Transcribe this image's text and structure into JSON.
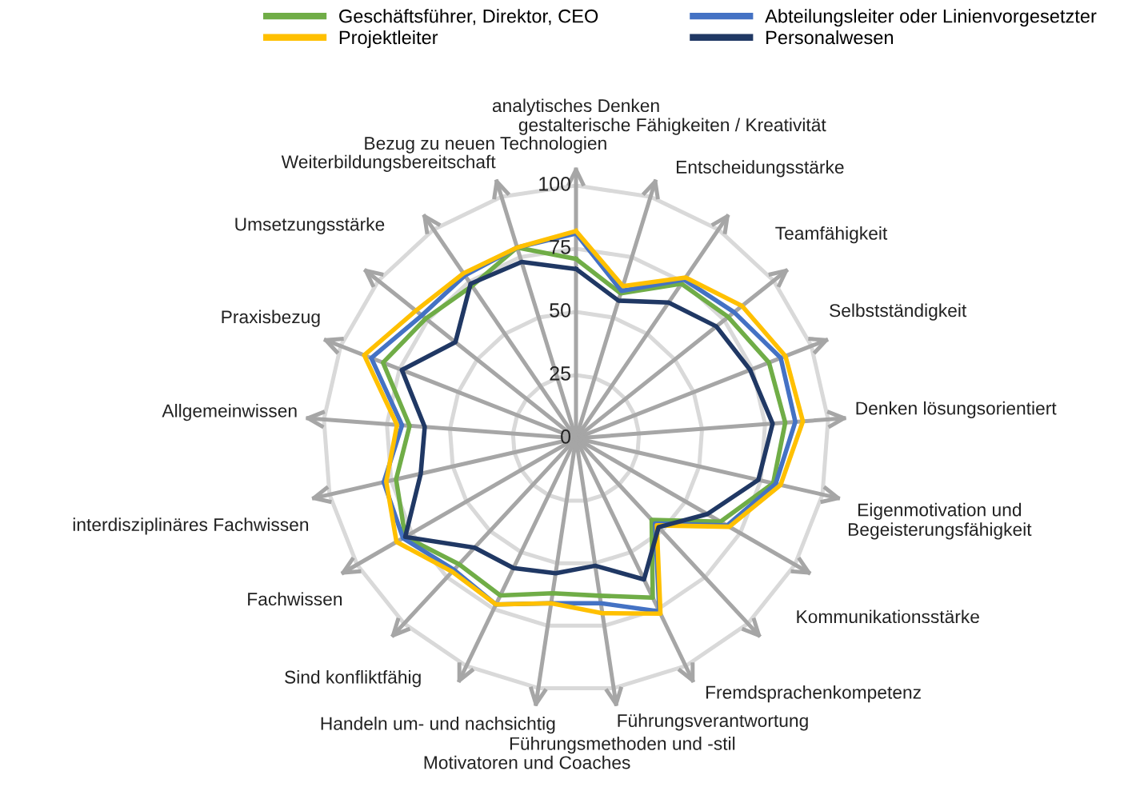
{
  "chart_data": {
    "type": "radar",
    "categories": [
      "analytisches Denken",
      "gestalterische Fähigkeiten / Kreativität",
      "Entscheidungsstärke",
      "Teamfähigkeit",
      "Selbstständigkeit",
      "Denken lösungsorientiert",
      "Eigenmotivation und\nBegeisterungsfähigkeit",
      "Kommunikationsstärke",
      "Fremdsprachenkompetenz",
      "Führungsverantwortung",
      "Führungsmethoden und -stil",
      "Motivatoren und Coaches",
      "Handeln um- und nachsichtig",
      "Sind konfliktfähig",
      "Fachwissen",
      "interdisziplinäres Fachwissen",
      "Allgemeinwissen",
      "Praxisbezug",
      "Umsetzungsstärke",
      "Weiterbildungsbereitschaft",
      "Bezug zu neuen Technologien"
    ],
    "series": [
      {
        "name": "Geschäftsführer, Direktor, CEO",
        "color": "#70ad47",
        "values": [
          71,
          60,
          74,
          77,
          82,
          83,
          80,
          66,
          44,
          70,
          63,
          62,
          69,
          68,
          78,
          73,
          66,
          82,
          76,
          73,
          79
        ]
      },
      {
        "name": "Abteilungsleiter oder Linienvorgesetzter",
        "color": "#4472c4",
        "values": [
          81,
          61,
          76,
          80,
          87,
          87,
          81,
          69,
          46,
          76,
          66,
          66,
          73,
          71,
          79,
          78,
          69,
          87,
          78,
          78,
          79
        ]
      },
      {
        "name": "Projektleiter",
        "color": "#ffc000",
        "values": [
          82,
          63,
          77,
          84,
          89,
          90,
          83,
          70,
          47,
          77,
          70,
          66,
          73,
          72,
          82,
          77,
          71,
          90,
          81,
          79,
          79
        ]
      },
      {
        "name": "Personalwesen",
        "color": "#203864",
        "values": [
          67,
          57,
          65,
          71,
          74,
          78,
          74,
          60,
          48,
          62,
          51,
          54,
          57,
          59,
          78,
          63,
          60,
          74,
          61,
          74,
          73
        ]
      }
    ],
    "ylim": [
      0,
      100
    ],
    "yticks": [
      0,
      25,
      50,
      75,
      100
    ],
    "grid": true,
    "legend": "top"
  }
}
